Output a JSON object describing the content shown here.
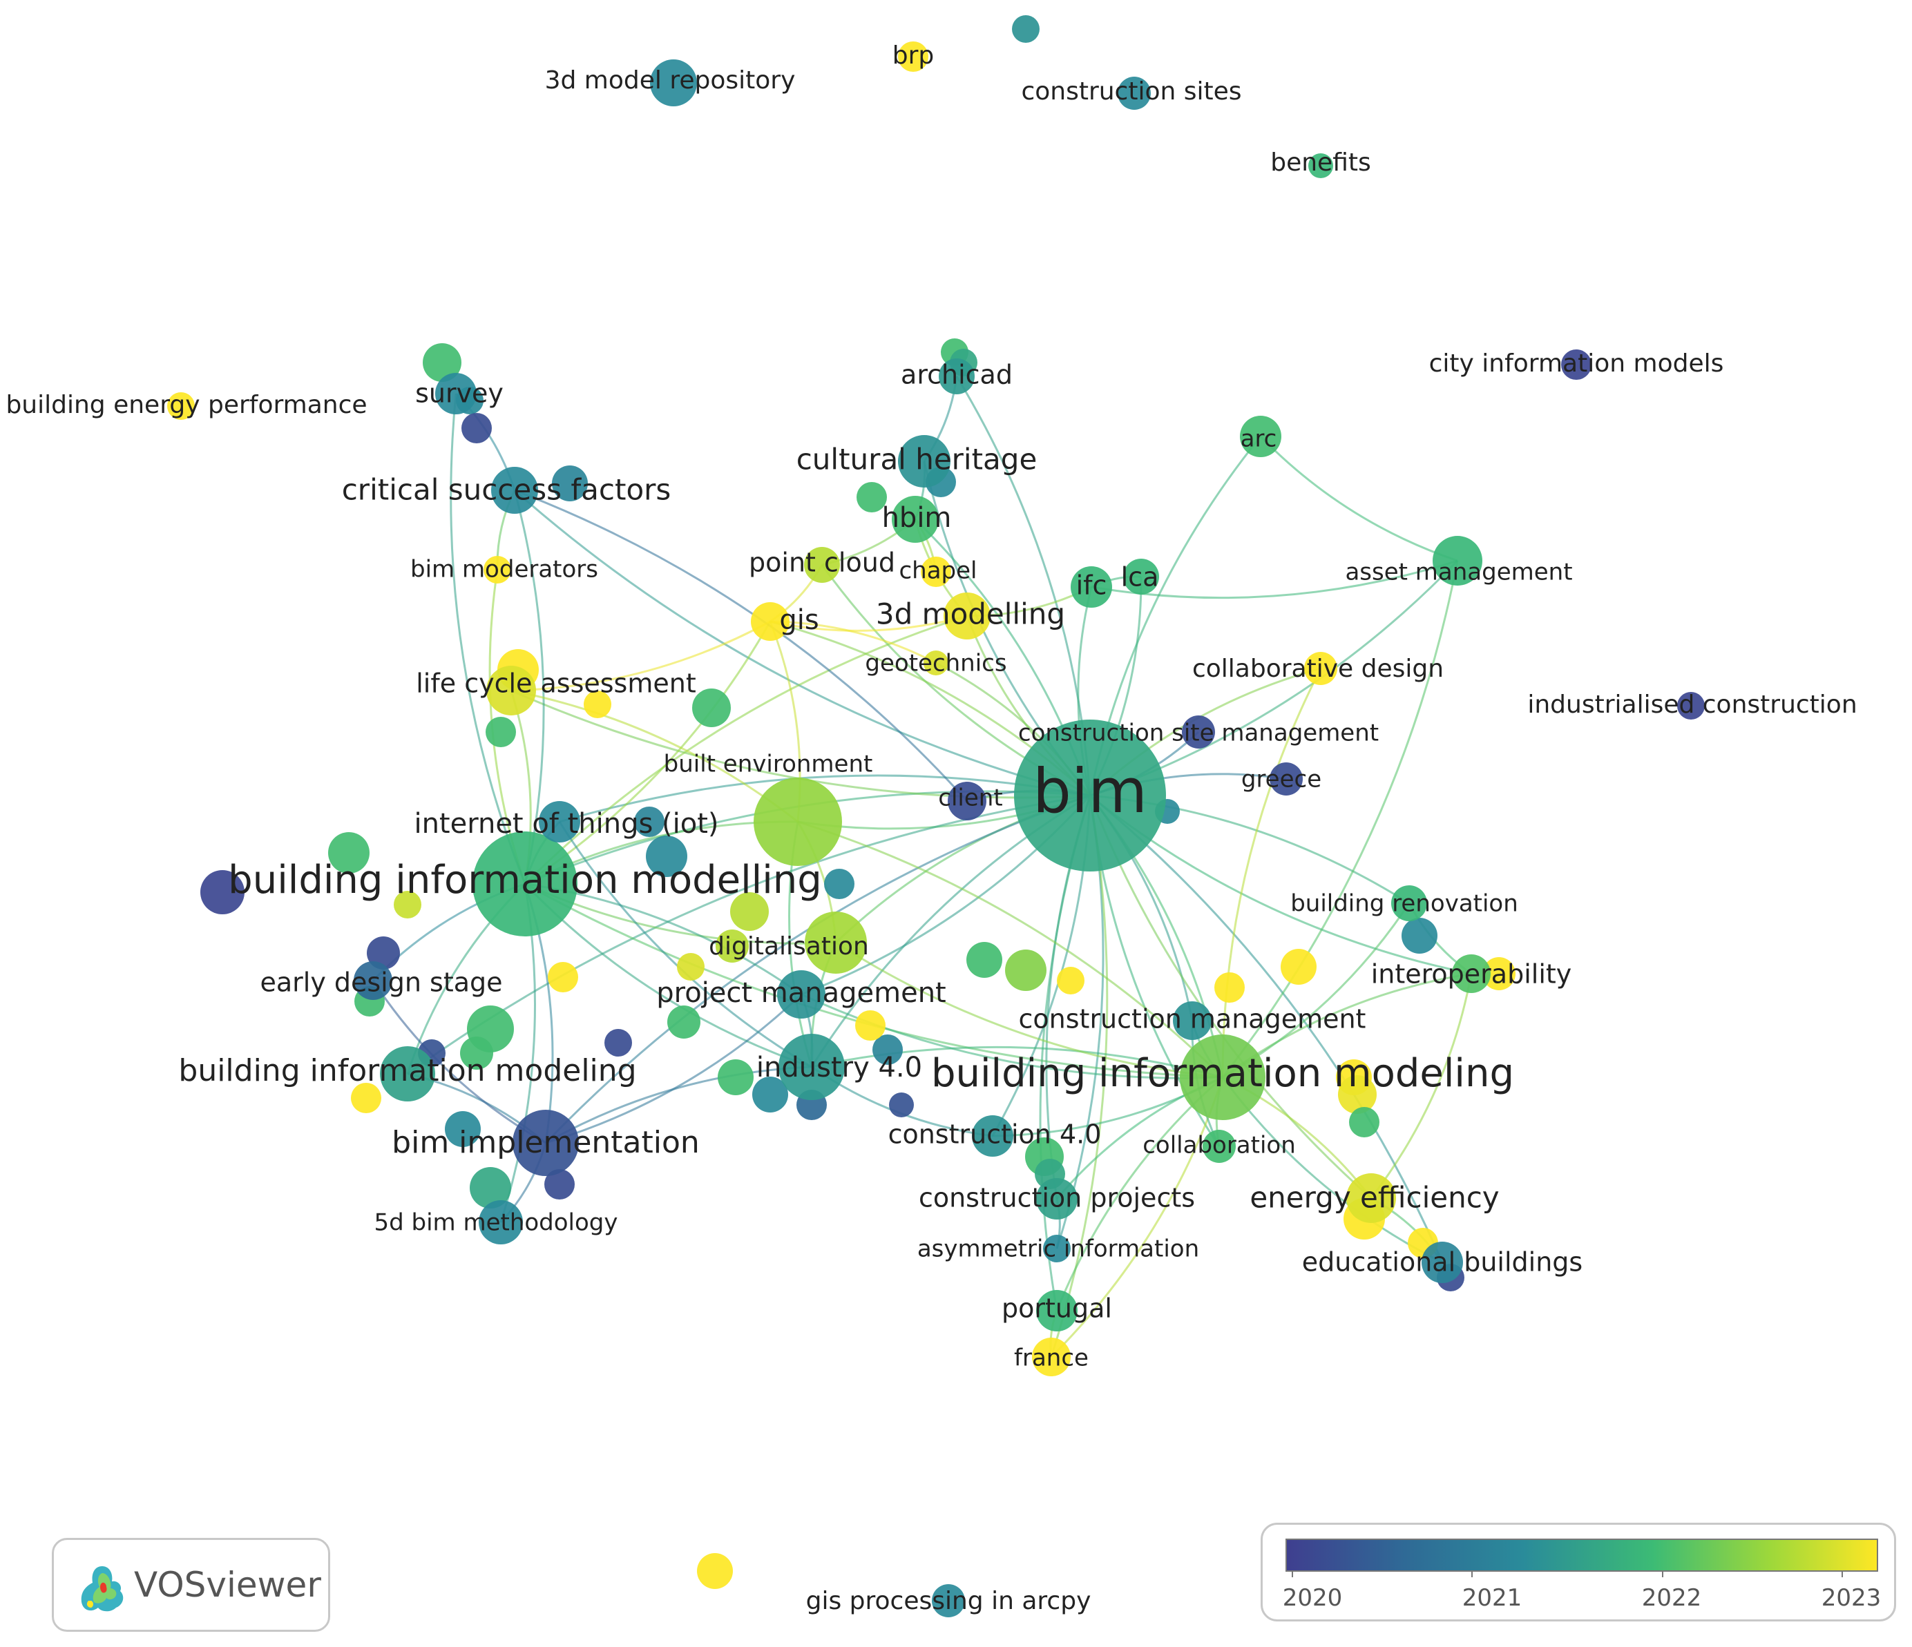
{
  "app": {
    "name": "VOSviewer"
  },
  "legend": {
    "labels": [
      "2020",
      "2021",
      "2022",
      "2023"
    ],
    "colors": [
      "#3f3f8f",
      "#2a8b9a",
      "#3cbb75",
      "#fde725"
    ]
  },
  "network": {
    "nodes": [
      {
        "id": "bim",
        "label": "bim",
        "year": 2021.6,
        "weight": 10
      },
      {
        "id": "bimg_ll",
        "label": "building information modelling",
        "year": 2021.8,
        "weight": 7
      },
      {
        "id": "bimg_l",
        "label": "building information modeling",
        "year": 2022.2,
        "weight": 6
      },
      {
        "id": "bimg_l2",
        "label": "building information modeling",
        "year": 2021.5,
        "weight": 4
      },
      {
        "id": "bim_impl",
        "label": "bim implementation",
        "year": 2020.3,
        "weight": 6
      },
      {
        "id": "industry40",
        "label": "industry 4.0",
        "year": 2021.4,
        "weight": 5
      },
      {
        "id": "built_env",
        "label": "built environment",
        "year": 2022.4,
        "weight": 6
      },
      {
        "id": "digital",
        "label": "digitalisation",
        "year": 2022.5,
        "weight": 4
      },
      {
        "id": "proj_mgmt",
        "label": "project management",
        "year": 2021.3,
        "weight": 3
      },
      {
        "id": "iot",
        "label": "internet of things (iot)",
        "year": 2021.2,
        "weight": 2
      },
      {
        "id": "early",
        "label": "early design stage",
        "year": 2020.6,
        "weight": 2
      },
      {
        "id": "five_d",
        "label": "5d bim methodology",
        "year": 2021.2,
        "weight": 2
      },
      {
        "id": "lca_assess",
        "label": "life cycle assessment",
        "year": 2022.8,
        "weight": 3
      },
      {
        "id": "bim_mod",
        "label": "bim moderators",
        "year": 2023,
        "weight": 1
      },
      {
        "id": "csf",
        "label": "critical success factors",
        "year": 2021.2,
        "weight": 3
      },
      {
        "id": "survey",
        "label": "survey",
        "year": 2021.2,
        "weight": 2
      },
      {
        "id": "bep",
        "label": "building energy performance",
        "year": 2023,
        "weight": 1
      },
      {
        "id": "repo",
        "label": "3d model repository",
        "year": 2021.2,
        "weight": 3
      },
      {
        "id": "brp",
        "label": "brp",
        "year": 2023,
        "weight": 1
      },
      {
        "id": "csites",
        "label": "construction sites",
        "year": 2021.2,
        "weight": 2
      },
      {
        "id": "benefits",
        "label": "benefits",
        "year": 2021.8,
        "weight": 1
      },
      {
        "id": "archicad",
        "label": "archicad",
        "year": 2021.4,
        "weight": 2
      },
      {
        "id": "cult",
        "label": "cultural heritage",
        "year": 2021.3,
        "weight": 3
      },
      {
        "id": "hbim",
        "label": "hbim",
        "year": 2021.9,
        "weight": 3
      },
      {
        "id": "pcloud",
        "label": "point cloud",
        "year": 2022.6,
        "weight": 2
      },
      {
        "id": "chapel",
        "label": "chapel",
        "year": 2023,
        "weight": 1
      },
      {
        "id": "gis",
        "label": "gis",
        "year": 2023,
        "weight": 2
      },
      {
        "id": "m3d",
        "label": "3d modelling",
        "year": 2022.9,
        "weight": 3
      },
      {
        "id": "geotech",
        "label": "geotechnics",
        "year": 2022.8,
        "weight": 1
      },
      {
        "id": "ifc",
        "label": "ifc",
        "year": 2021.8,
        "weight": 2
      },
      {
        "id": "lca",
        "label": "lca",
        "year": 2021.8,
        "weight": 2
      },
      {
        "id": "arc",
        "label": "arc",
        "year": 2021.9,
        "weight": 2
      },
      {
        "id": "asset",
        "label": "asset management",
        "year": 2021.8,
        "weight": 3
      },
      {
        "id": "cim",
        "label": "city information models",
        "year": 2020.1,
        "weight": 1
      },
      {
        "id": "collab_d",
        "label": "collaborative design",
        "year": 2023,
        "weight": 2
      },
      {
        "id": "ind_c",
        "label": "industrialised construction",
        "year": 2020.1,
        "weight": 1
      },
      {
        "id": "csm",
        "label": "construction site management",
        "year": 2020.2,
        "weight": 2
      },
      {
        "id": "greece",
        "label": "greece",
        "year": 2020.2,
        "weight": 2
      },
      {
        "id": "client",
        "label": "client",
        "year": 2020.2,
        "weight": 2
      },
      {
        "id": "b_renov",
        "label": "building renovation",
        "year": 2021.8,
        "weight": 2
      },
      {
        "id": "interop",
        "label": "interoperability",
        "year": 2022,
        "weight": 2
      },
      {
        "id": "cmgmt",
        "label": "construction management",
        "year": 2021.3,
        "weight": 2
      },
      {
        "id": "collab",
        "label": "collaboration",
        "year": 2021.9,
        "weight": 1
      },
      {
        "id": "c40",
        "label": "construction 4.0",
        "year": 2021.3,
        "weight": 2
      },
      {
        "id": "cprojects",
        "label": "construction projects",
        "year": 2021.5,
        "weight": 2
      },
      {
        "id": "asym",
        "label": "asymmetric information",
        "year": 2021.2,
        "weight": 1
      },
      {
        "id": "energy",
        "label": "energy efficiency",
        "year": 2022.8,
        "weight": 3
      },
      {
        "id": "edu",
        "label": "educational buildings",
        "year": 2021.1,
        "weight": 2
      },
      {
        "id": "portugal",
        "label": "portugal",
        "year": 2021.8,
        "weight": 2
      },
      {
        "id": "france",
        "label": "france",
        "year": 2023,
        "weight": 2
      },
      {
        "id": "gisarcpy",
        "label": "gis processing in arcpy",
        "year": 2021.2,
        "weight": 1
      }
    ],
    "edges": [
      [
        "bim",
        "bimg_ll"
      ],
      [
        "bim",
        "bimg_l"
      ],
      [
        "bim",
        "industry40"
      ],
      [
        "bim",
        "built_env"
      ],
      [
        "bim",
        "digital"
      ],
      [
        "bim",
        "proj_mgmt"
      ],
      [
        "bim",
        "iot"
      ],
      [
        "bim",
        "csf"
      ],
      [
        "bim",
        "archicad"
      ],
      [
        "bim",
        "cult"
      ],
      [
        "bim",
        "hbim"
      ],
      [
        "bim",
        "pcloud"
      ],
      [
        "bim",
        "gis"
      ],
      [
        "bim",
        "m3d"
      ],
      [
        "bim",
        "geotech"
      ],
      [
        "bim",
        "ifc"
      ],
      [
        "bim",
        "lca"
      ],
      [
        "bim",
        "arc"
      ],
      [
        "bim",
        "asset"
      ],
      [
        "bim",
        "collab_d"
      ],
      [
        "bim",
        "csm"
      ],
      [
        "bim",
        "greece"
      ],
      [
        "bim",
        "client"
      ],
      [
        "bim",
        "b_renov"
      ],
      [
        "bim",
        "interop"
      ],
      [
        "bim",
        "cmgmt"
      ],
      [
        "bim",
        "collab"
      ],
      [
        "bim",
        "c40"
      ],
      [
        "bim",
        "cprojects"
      ],
      [
        "bim",
        "asym"
      ],
      [
        "bim",
        "energy"
      ],
      [
        "bim",
        "edu"
      ],
      [
        "bim",
        "portugal"
      ],
      [
        "bim",
        "france"
      ],
      [
        "bim",
        "bim_impl"
      ],
      [
        "bim",
        "lca_assess"
      ],
      [
        "bim",
        "bimg_l2"
      ],
      [
        "bimg_ll",
        "bim_impl"
      ],
      [
        "bimg_ll",
        "early"
      ],
      [
        "bimg_ll",
        "iot"
      ],
      [
        "bimg_ll",
        "lca_assess"
      ],
      [
        "bimg_ll",
        "bim_mod"
      ],
      [
        "bimg_ll",
        "csf"
      ],
      [
        "bimg_ll",
        "survey"
      ],
      [
        "bimg_ll",
        "digital"
      ],
      [
        "bimg_ll",
        "proj_mgmt"
      ],
      [
        "bimg_ll",
        "industry40"
      ],
      [
        "bimg_ll",
        "built_env"
      ],
      [
        "bimg_ll",
        "bimg_l2"
      ],
      [
        "bimg_ll",
        "five_d"
      ],
      [
        "bimg_ll",
        "gis"
      ],
      [
        "bimg_ll",
        "m3d"
      ],
      [
        "bimg_ll",
        "bimg_l"
      ],
      [
        "bimg_l",
        "energy"
      ],
      [
        "bimg_l",
        "edu"
      ],
      [
        "bimg_l",
        "interop"
      ],
      [
        "bimg_l",
        "b_renov"
      ],
      [
        "bimg_l",
        "cmgmt"
      ],
      [
        "bimg_l",
        "collab"
      ],
      [
        "bimg_l",
        "c40"
      ],
      [
        "bimg_l",
        "industry40"
      ],
      [
        "bimg_l",
        "digital"
      ],
      [
        "bimg_l",
        "asset"
      ],
      [
        "bimg_l",
        "collab_d"
      ],
      [
        "bimg_l",
        "portugal"
      ],
      [
        "bimg_l",
        "france"
      ],
      [
        "bimg_l",
        "built_env"
      ],
      [
        "bimg_l",
        "proj_mgmt"
      ],
      [
        "bimg_l",
        "cprojects"
      ],
      [
        "bim_impl",
        "five_d"
      ],
      [
        "bim_impl",
        "bimg_l2"
      ],
      [
        "bim_impl",
        "industry40"
      ],
      [
        "bim_impl",
        "proj_mgmt"
      ],
      [
        "bim_impl",
        "early"
      ],
      [
        "industry40",
        "c40"
      ],
      [
        "industry40",
        "digital"
      ],
      [
        "industry40",
        "proj_mgmt"
      ],
      [
        "industry40",
        "built_env"
      ],
      [
        "csf",
        "survey"
      ],
      [
        "csf",
        "client"
      ],
      [
        "csf",
        "bim_mod"
      ],
      [
        "cult",
        "hbim"
      ],
      [
        "cult",
        "archicad"
      ],
      [
        "hbim",
        "pcloud"
      ],
      [
        "hbim",
        "m3d"
      ],
      [
        "hbim",
        "chapel"
      ],
      [
        "gis",
        "m3d"
      ],
      [
        "gis",
        "geotech"
      ],
      [
        "gis",
        "pcloud"
      ],
      [
        "gis",
        "built_env"
      ],
      [
        "m3d",
        "ifc"
      ],
      [
        "ifc",
        "lca"
      ],
      [
        "ifc",
        "asset"
      ],
      [
        "energy",
        "edu"
      ],
      [
        "energy",
        "interop"
      ],
      [
        "cprojects",
        "asym"
      ],
      [
        "portugal",
        "france"
      ],
      [
        "built_env",
        "digital"
      ],
      [
        "lca_assess",
        "gis"
      ],
      [
        "lca_assess",
        "built_env"
      ],
      [
        "iot",
        "industry40"
      ],
      [
        "interop",
        "b_renov"
      ],
      [
        "cmgmt",
        "collab"
      ],
      [
        "asset",
        "arc"
      ]
    ]
  }
}
